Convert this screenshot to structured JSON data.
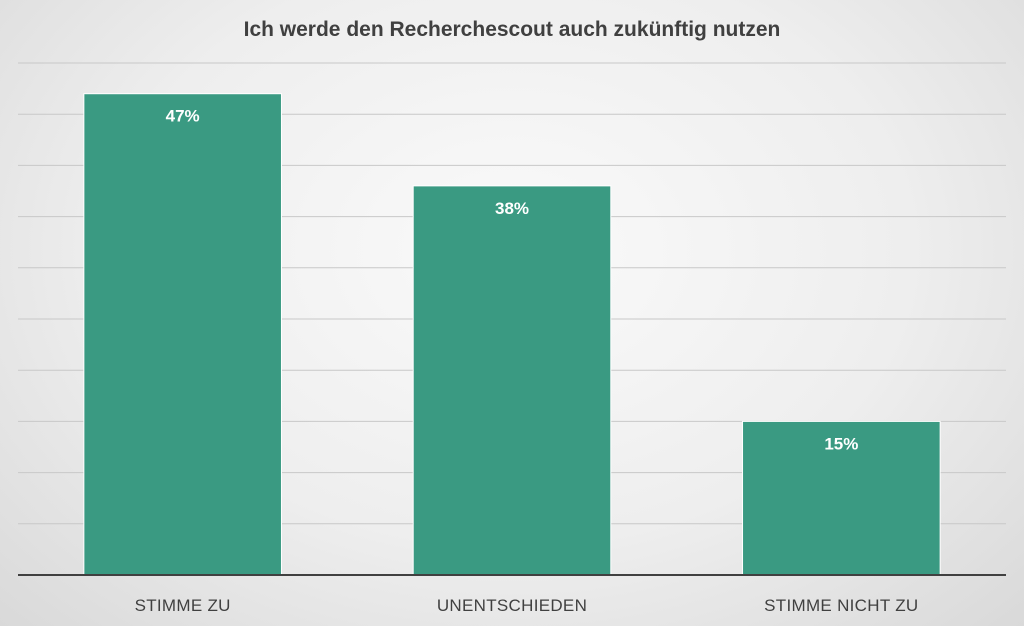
{
  "chart_data": {
    "type": "bar",
    "title": "Ich werde den Recherchescout auch zukünftig nutzen",
    "categories": [
      "STIMME ZU",
      "UNENTSCHIEDEN",
      "STIMME NICHT ZU"
    ],
    "values": [
      47,
      38,
      15
    ],
    "data_labels": [
      "47%",
      "38%",
      "15%"
    ],
    "xlabel": "",
    "ylabel": "",
    "ylim": [
      0,
      50
    ],
    "grid": true,
    "y_tick_labels_shown": false,
    "legend": "none",
    "colors": {
      "bar": "#3A9A82",
      "background": "#EEEEEE"
    }
  }
}
